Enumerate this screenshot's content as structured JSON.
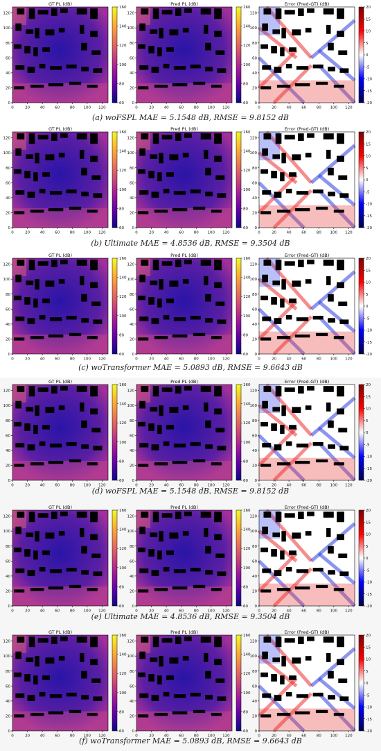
{
  "colors": {
    "plasma": [
      "#0d0887",
      "#5c01a6",
      "#9c179e",
      "#cc4778",
      "#ed7953",
      "#fdb42f",
      "#f0f921"
    ],
    "seismic": [
      "#00004c",
      "#0000ff",
      "#ffffff",
      "#ff0000",
      "#7f0000"
    ],
    "building": "#000000",
    "ground": "#3d1b9a"
  },
  "panel_titles": {
    "gt": "GT PL (dB)",
    "pred": "Pred PL (dB)",
    "error": "Error (Pred-GT) (dB)"
  },
  "figures": [
    {
      "id": "a",
      "caption": "(a) woFSPL   MAE = 5.1548 dB, RMSE = 9.8152 dB"
    },
    {
      "id": "b",
      "caption": "(b) Ultimate   MAE = 4.8536 dB, RMSE = 9.3504 dB"
    },
    {
      "id": "c",
      "caption": "(c) woTransformer   MAE = 5.0893 dB, RMSE = 9.6643 dB"
    },
    {
      "id": "d",
      "caption": "(d) woFSPL   MAE = 5.1548 dB, RMSE = 9.8152 dB"
    },
    {
      "id": "e",
      "caption": "(e) Ultimate   MAE = 4.8536 dB, RMSE = 9.3504 dB"
    },
    {
      "id": "f",
      "caption": "(f) woTransformer   MAE = 5.0893 dB, RMSE = 9.6643 dB"
    }
  ],
  "chart_data": {
    "type": "heatmap",
    "panels_per_figure": [
      "GT PL (dB)",
      "Pred PL (dB)",
      "Error (Pred-GT) (dB)"
    ],
    "xlim": [
      0,
      128
    ],
    "ylim": [
      0,
      128
    ],
    "x_ticks": [
      0,
      20,
      40,
      60,
      80,
      100,
      120
    ],
    "y_ticks": [
      0,
      20,
      40,
      60,
      80,
      100,
      120
    ],
    "pathloss_colorbar": {
      "colormap": "plasma",
      "range": [
        60,
        160
      ],
      "ticks": [
        60,
        80,
        100,
        120,
        140,
        160
      ]
    },
    "error_colorbar": {
      "colormap": "seismic",
      "range": [
        -20,
        20
      ],
      "ticks": [
        -20,
        -15,
        -10,
        -5,
        0,
        5,
        10,
        15,
        20
      ]
    },
    "metrics": [
      {
        "model": "woFSPL",
        "mae_db": 5.1548,
        "rmse_db": 9.8152
      },
      {
        "model": "Ultimate",
        "mae_db": 4.8536,
        "rmse_db": 9.3504
      },
      {
        "model": "woTransformer",
        "mae_db": 5.0893,
        "rmse_db": 9.6643
      }
    ]
  }
}
